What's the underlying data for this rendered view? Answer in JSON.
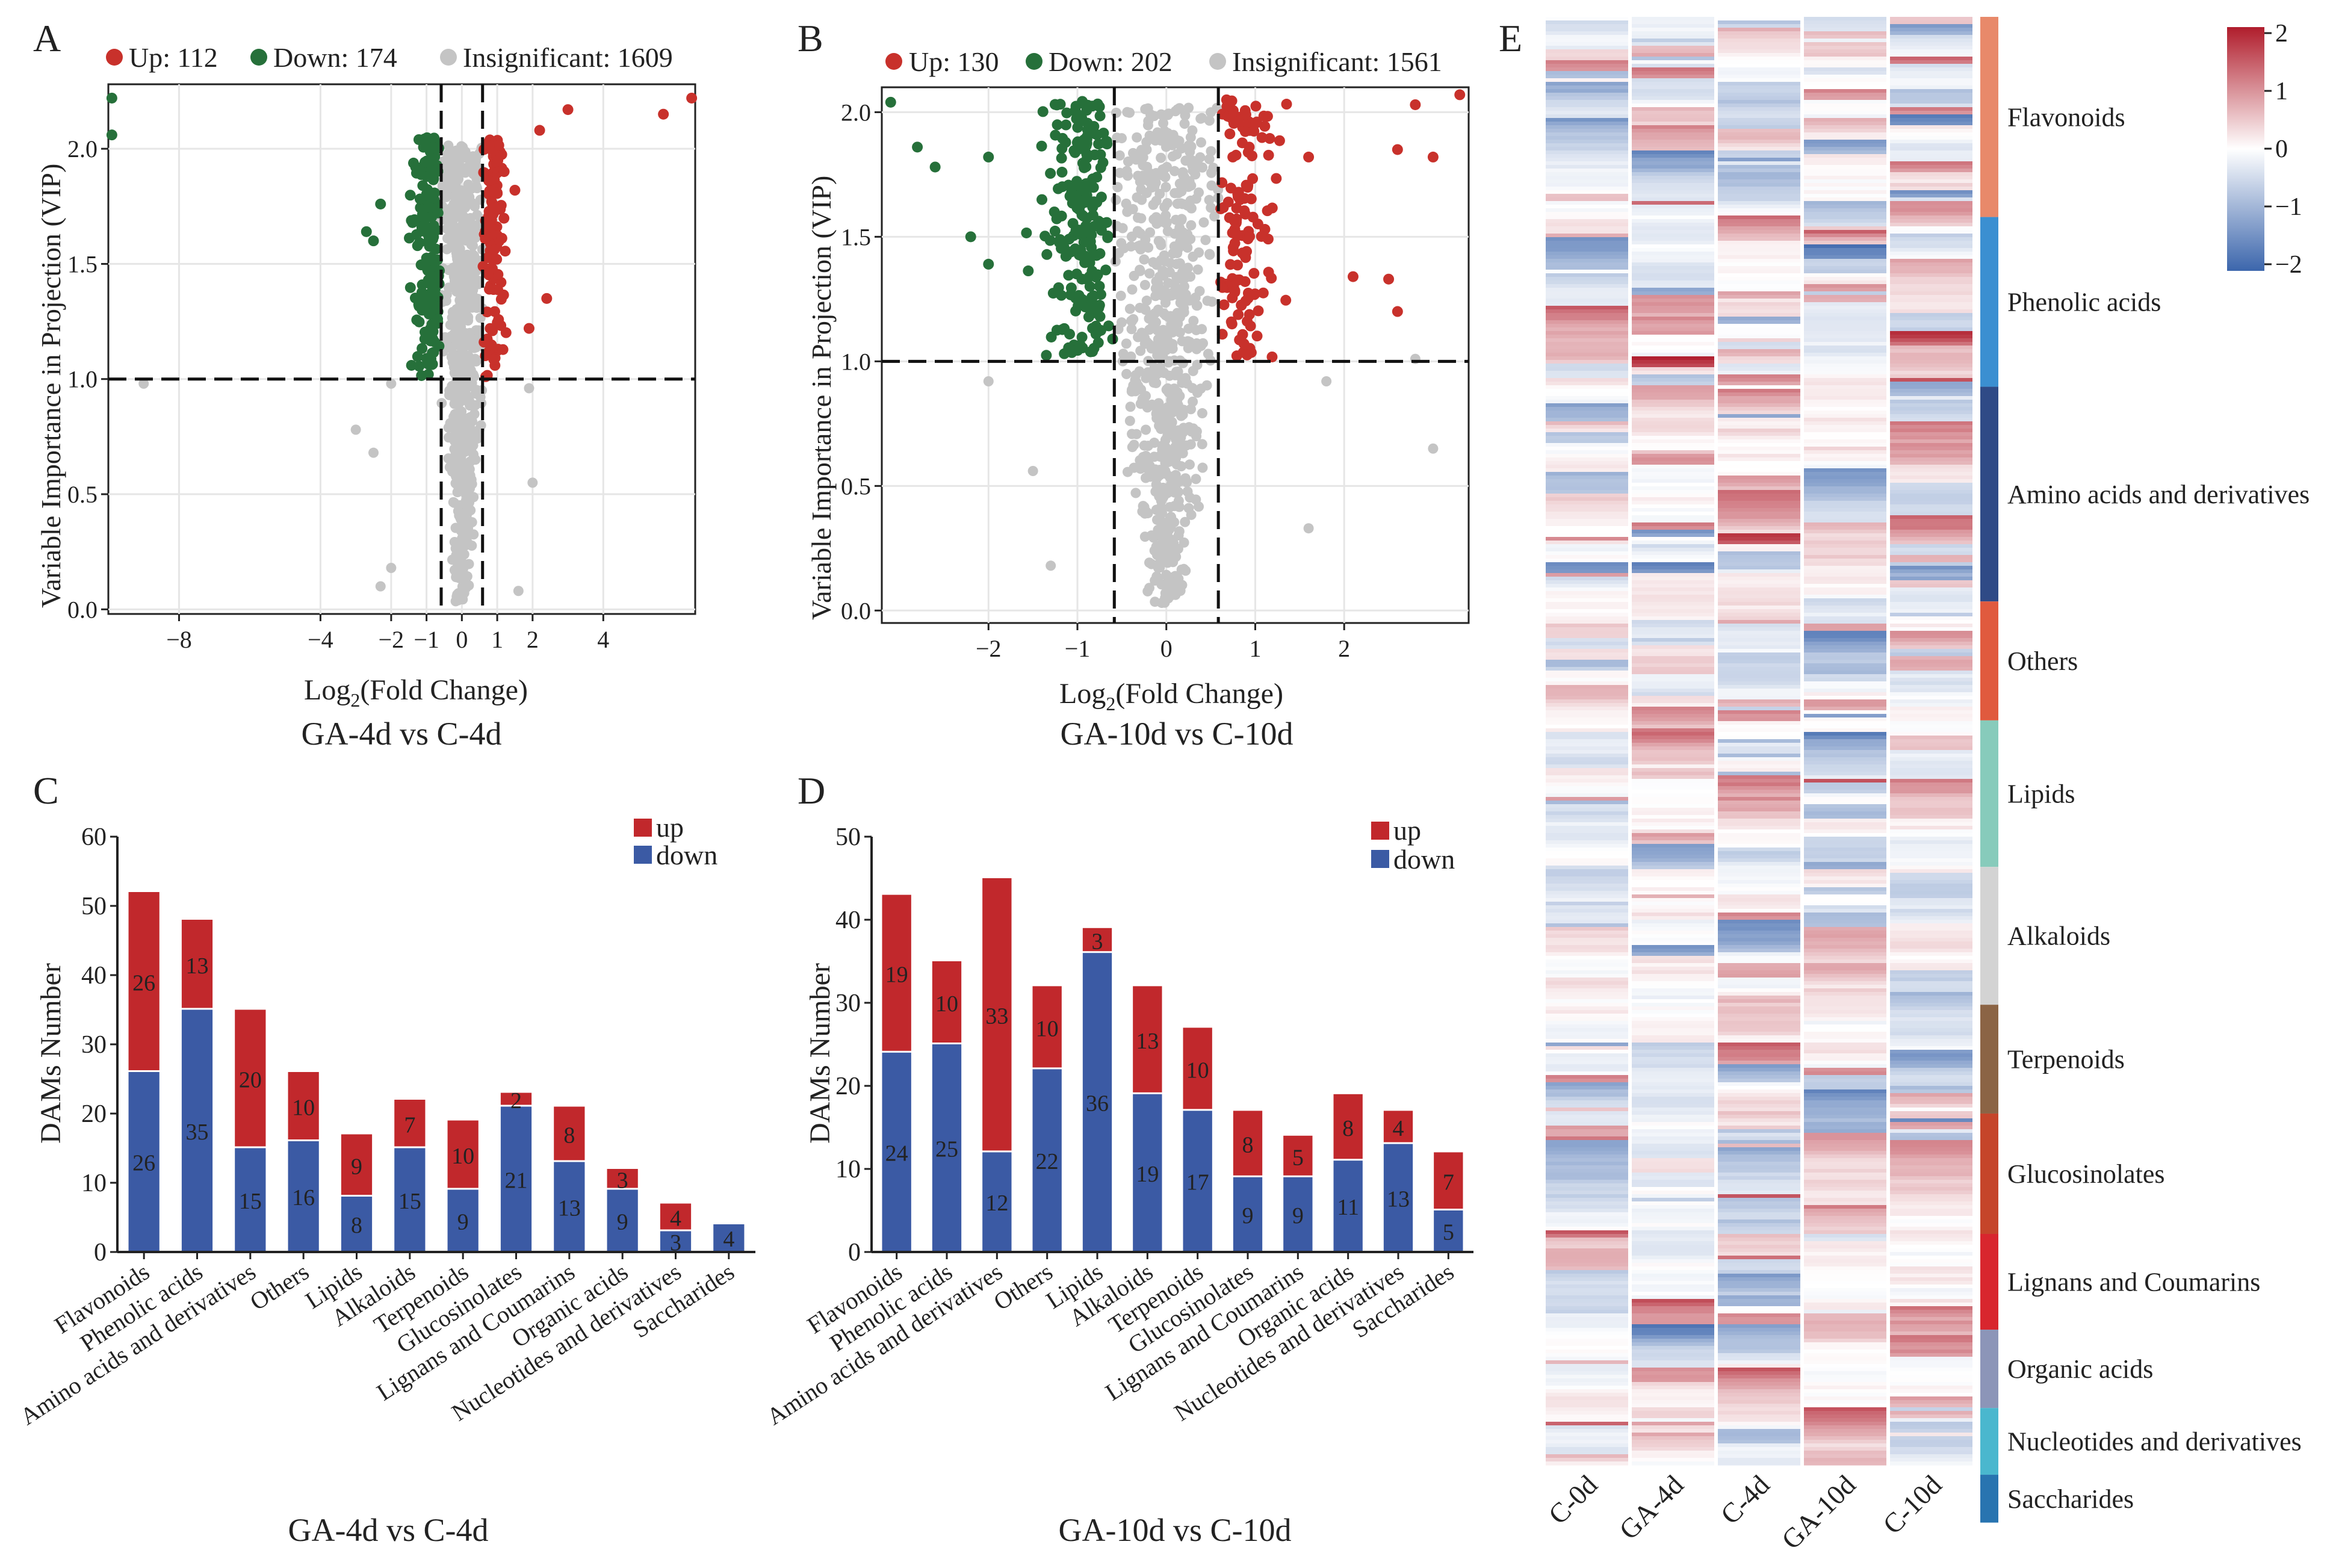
{
  "colors": {
    "up": "#c8312b",
    "down": "#26703a",
    "insig": "#c4c4c4",
    "bar_up": "#c1282c",
    "bar_down": "#3b5aa4"
  },
  "chart_data": [
    {
      "panel": "A",
      "type": "scatter",
      "title": "GA-4d vs C-4d",
      "xlabel": "Log2(Fold Change)",
      "ylabel": "Variable Importance in Projection (VIP)",
      "xlim": [
        -10,
        6.6
      ],
      "ylim": [
        -0.02,
        2.28
      ],
      "xticks": [
        -8,
        -4,
        -2,
        -1,
        0,
        1,
        2,
        4
      ],
      "yticks": [
        "0.0",
        "0.5",
        "1.0",
        "1.5",
        "2.0"
      ],
      "thresholds": {
        "x": [
          -0.585,
          0.585
        ],
        "y": 1.0
      },
      "legend": [
        {
          "label": "Up: 112",
          "count": 112
        },
        {
          "label": "Down: 174",
          "count": 174
        },
        {
          "label": "Insignificant: 1609",
          "count": 1609
        }
      ],
      "outliers_up": [
        [
          6.5,
          2.22
        ],
        [
          5.7,
          2.15
        ],
        [
          3.0,
          2.17
        ],
        [
          2.2,
          2.08
        ],
        [
          2.4,
          1.35
        ],
        [
          1.5,
          1.82
        ],
        [
          1.9,
          1.22
        ]
      ],
      "outliers_down": [
        [
          -9.9,
          2.22
        ],
        [
          -9.9,
          2.06
        ],
        [
          -2.7,
          1.64
        ],
        [
          -2.5,
          1.6
        ],
        [
          -2.3,
          1.76
        ]
      ],
      "outliers_insig": [
        [
          -9.0,
          0.98
        ],
        [
          -3.0,
          0.78
        ],
        [
          -2.5,
          0.68
        ],
        [
          -2.3,
          0.1
        ],
        [
          -2.0,
          0.18
        ],
        [
          -2.0,
          0.98
        ],
        [
          1.9,
          0.96
        ],
        [
          2.0,
          0.55
        ],
        [
          1.6,
          0.08
        ]
      ]
    },
    {
      "panel": "B",
      "type": "scatter",
      "title": "GA-10d vs C-10d",
      "xlabel": "Log2(Fold Change)",
      "ylabel": "Variable Importance in Projection (VIP)",
      "xlim": [
        -3.2,
        3.4
      ],
      "ylim": [
        -0.05,
        2.1
      ],
      "xticks": [
        -2,
        -1,
        0,
        1,
        2
      ],
      "yticks": [
        "0.0",
        "0.5",
        "1.0",
        "1.5",
        "2.0"
      ],
      "thresholds": {
        "x": [
          -0.585,
          0.585
        ],
        "y": 1.0
      },
      "legend": [
        {
          "label": "Up: 130",
          "count": 130
        },
        {
          "label": "Down: 202",
          "count": 202
        },
        {
          "label": "Insignificant: 1561",
          "count": 1561
        }
      ],
      "outliers_up": [
        [
          3.3,
          2.07
        ],
        [
          2.8,
          2.03
        ],
        [
          3.0,
          1.82
        ],
        [
          2.6,
          1.85
        ],
        [
          2.1,
          1.34
        ],
        [
          2.5,
          1.33
        ],
        [
          2.6,
          1.2
        ],
        [
          1.6,
          1.82
        ]
      ],
      "outliers_down": [
        [
          -3.1,
          2.04
        ],
        [
          -2.8,
          1.86
        ],
        [
          -2.6,
          1.78
        ],
        [
          -2.2,
          1.5
        ],
        [
          -2.0,
          1.82
        ],
        [
          -2.0,
          1.39
        ]
      ],
      "outliers_insig": [
        [
          -2.0,
          0.92
        ],
        [
          -1.5,
          0.56
        ],
        [
          -1.3,
          0.18
        ],
        [
          1.6,
          0.33
        ],
        [
          3.0,
          0.65
        ],
        [
          2.8,
          1.01
        ],
        [
          1.8,
          0.92
        ]
      ]
    },
    {
      "panel": "C",
      "type": "bar",
      "stacked": true,
      "title": "GA-4d vs C-4d",
      "ylabel": "DAMs Number",
      "ylim": [
        0,
        60
      ],
      "yticks": [
        0,
        10,
        20,
        30,
        40,
        50,
        60
      ],
      "categories": [
        "Flavonoids",
        "Phenolic acids",
        "Amino acids and derivatives",
        "Others",
        "Lipids",
        "Alkaloids",
        "Terpenoids",
        "Glucosinolates",
        "Lignans and Coumarins",
        "Organic acids",
        "Nucleotides and derivatives",
        "Saccharides"
      ],
      "legend": [
        "up",
        "down"
      ],
      "series": [
        {
          "name": "down",
          "values": [
            26,
            35,
            15,
            16,
            8,
            15,
            9,
            21,
            13,
            9,
            3,
            4
          ]
        },
        {
          "name": "up",
          "values": [
            26,
            13,
            20,
            10,
            9,
            7,
            10,
            2,
            8,
            3,
            4,
            0
          ]
        }
      ]
    },
    {
      "panel": "D",
      "type": "bar",
      "stacked": true,
      "title": "GA-10d vs C-10d",
      "ylabel": "DAMs Number",
      "ylim": [
        0,
        50
      ],
      "yticks": [
        0,
        10,
        20,
        30,
        40,
        50
      ],
      "categories": [
        "Flavonoids",
        "Phenolic acids",
        "Amino acids and derivatives",
        "Others",
        "Lipids",
        "Alkaloids",
        "Terpenoids",
        "Glucosinolates",
        "Lignans and Coumarins",
        "Organic acids",
        "Nucleotides and derivatives",
        "Saccharides"
      ],
      "legend": [
        "up",
        "down"
      ],
      "series": [
        {
          "name": "down",
          "values": [
            24,
            25,
            12,
            22,
            36,
            19,
            17,
            9,
            9,
            11,
            13,
            5
          ]
        },
        {
          "name": "up",
          "values": [
            19,
            10,
            33,
            10,
            3,
            13,
            10,
            8,
            5,
            8,
            4,
            7
          ]
        }
      ]
    },
    {
      "panel": "E",
      "type": "heatmap",
      "columns": [
        "C-0d",
        "GA-4d",
        "C-4d",
        "GA-10d",
        "C-10d"
      ],
      "colorbar": {
        "ticks": [
          "2",
          "1",
          "0",
          "−1",
          "−2"
        ],
        "low": "#3c66ac",
        "mid": "#ffffff",
        "high": "#b01d2c"
      },
      "groups": [
        {
          "name": "Flavonoids",
          "frac": 0.138,
          "color": "#e8896a"
        },
        {
          "name": "Phenolic acids",
          "frac": 0.117,
          "color": "#3b8fd1"
        },
        {
          "name": "Amino acids and derivatives",
          "frac": 0.148,
          "color": "#2f4a86"
        },
        {
          "name": "Others",
          "frac": 0.082,
          "color": "#e05a3e"
        },
        {
          "name": "Lipids",
          "frac": 0.101,
          "color": "#87cbbb"
        },
        {
          "name": "Alkaloids",
          "frac": 0.095,
          "color": "#d3d3d3"
        },
        {
          "name": "Terpenoids",
          "frac": 0.075,
          "color": "#8b6445"
        },
        {
          "name": "Glucosinolates",
          "frac": 0.083,
          "color": "#c5452a"
        },
        {
          "name": "Lignans and Coumarins",
          "frac": 0.066,
          "color": "#d8262e"
        },
        {
          "name": "Organic acids",
          "frac": 0.054,
          "color": "#8c95b8"
        },
        {
          "name": "Nucleotides and derivatives",
          "frac": 0.046,
          "color": "#4ab7ce"
        },
        {
          "name": "Saccharides",
          "frac": 0.033,
          "color": "#2874b0"
        }
      ]
    }
  ]
}
